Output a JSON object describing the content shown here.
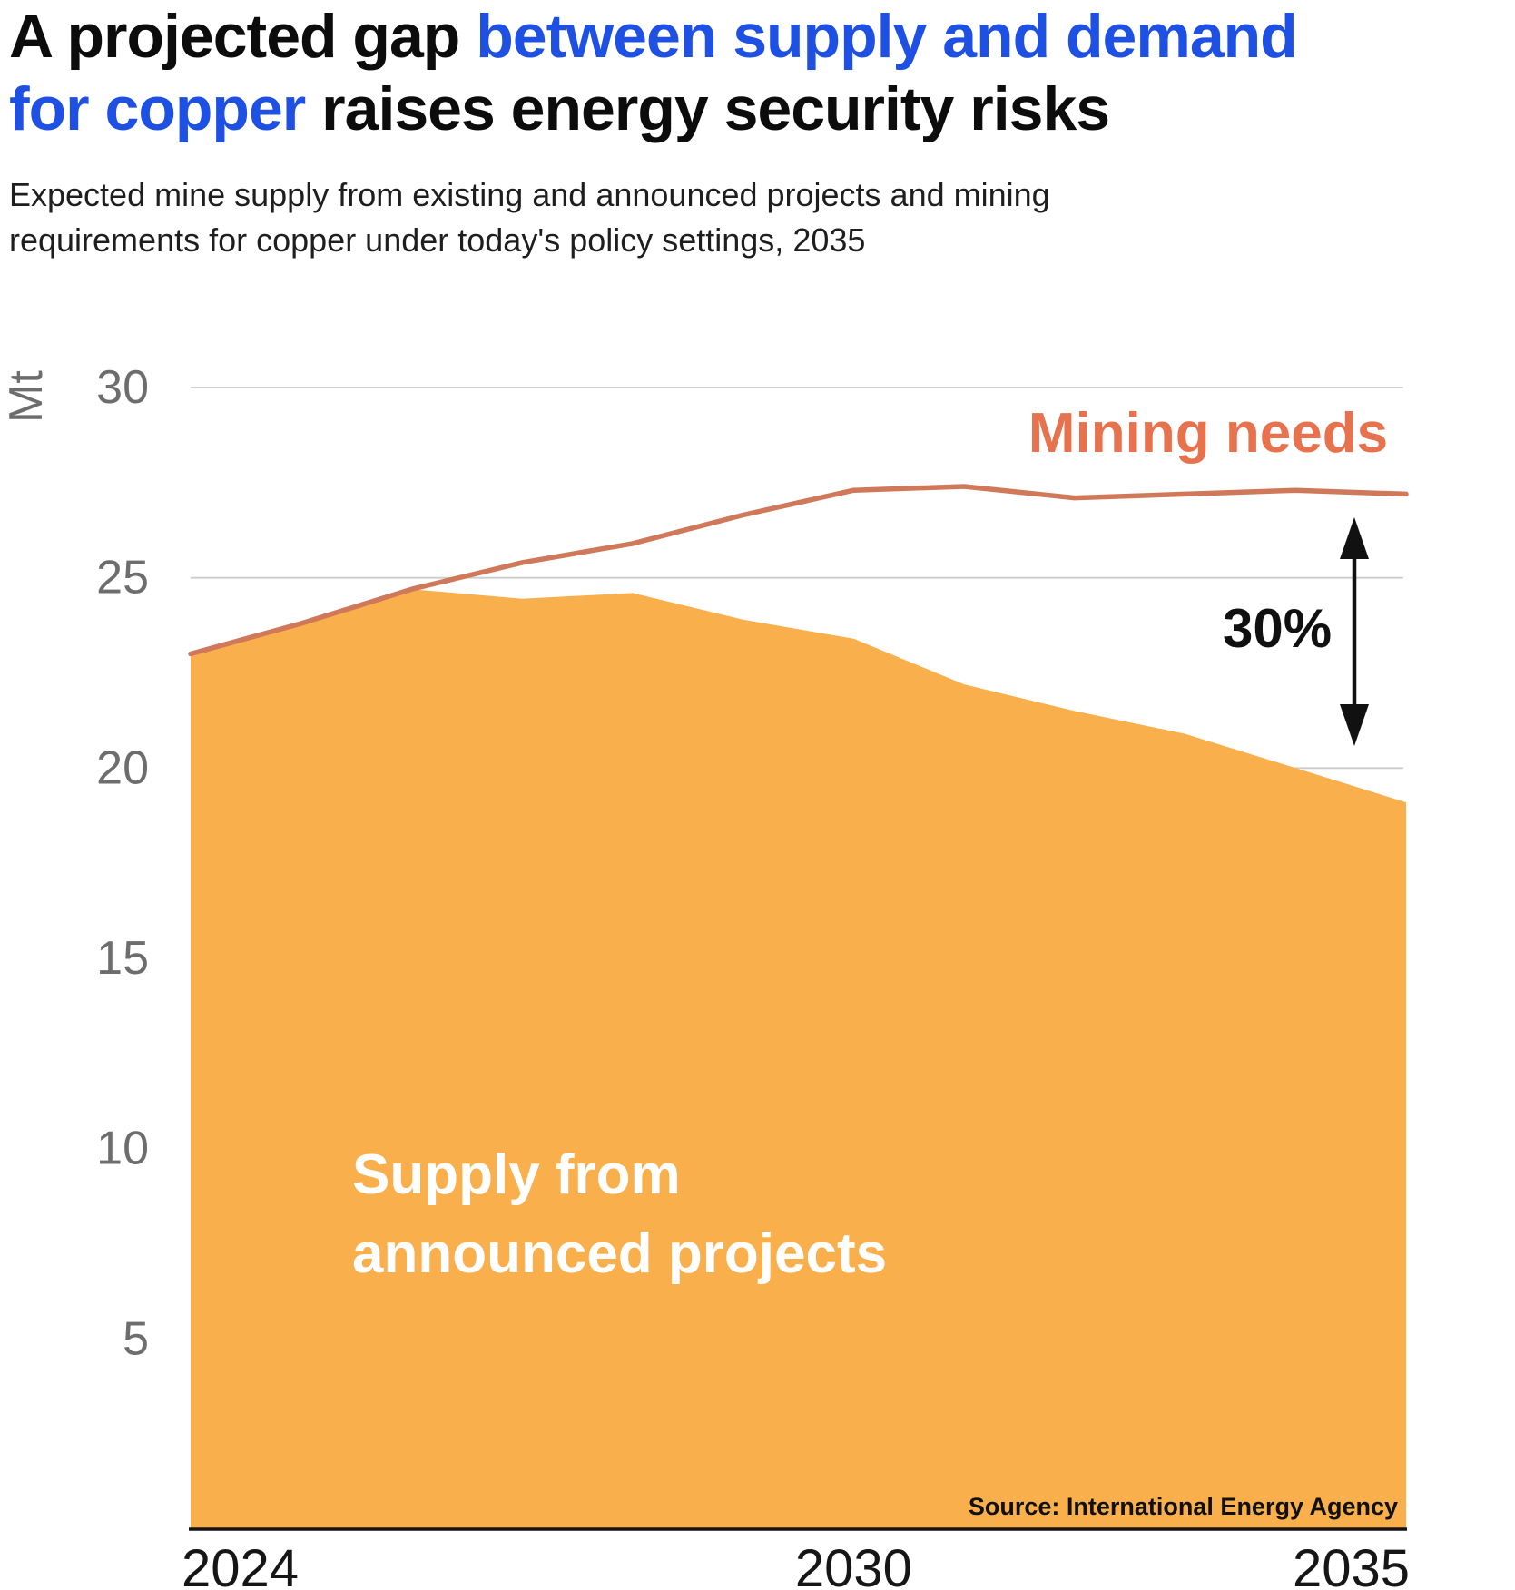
{
  "header": {
    "title": {
      "line1_black": "A projected gap",
      "line1_blue": "between supply and demand",
      "line2_blue": "for copper",
      "line2_black": "raises energy security risks"
    },
    "subtitle_lines": [
      "Expected mine supply from existing and announced projects and mining",
      "requirements for copper under today's policy settings, 2035"
    ]
  },
  "chart": {
    "unit_label": "Mt",
    "line_label": "Mining needs",
    "area_label_lines": [
      "Supply from",
      "announced projects"
    ],
    "gap_label": "30%",
    "source": "Source: International Energy Agency"
  },
  "colors": {
    "title_blue": "#1E50E4",
    "area_fill": "#F9B04C",
    "line_stroke": "#D0785A",
    "line_label": "#E7734E",
    "grid": "#CCCCCC",
    "axis": "#141414",
    "tick_gray": "#6D6D6D"
  },
  "chart_data": {
    "type": "area",
    "title": "A projected gap between supply and demand for copper raises energy security risks",
    "subtitle": "Expected mine supply from existing and announced projects and mining requirements for copper under today's policy settings, 2035",
    "ylabel": "Mt",
    "ylim": [
      0,
      30
    ],
    "y_ticks": [
      30,
      25,
      20,
      15,
      10,
      5
    ],
    "x_ticks": [
      2024,
      2030,
      2035
    ],
    "x": [
      2024,
      2025,
      2026,
      2027,
      2028,
      2029,
      2030,
      2031,
      2032,
      2033,
      2034,
      2035
    ],
    "series": [
      {
        "name": "Mining needs",
        "type": "line",
        "values": [
          23.0,
          23.8,
          24.7,
          25.4,
          25.9,
          26.65,
          27.3,
          27.4,
          27.1,
          27.2,
          27.3,
          27.2
        ]
      },
      {
        "name": "Supply from announced projects",
        "type": "area",
        "values": [
          23.0,
          23.8,
          24.7,
          24.45,
          24.6,
          23.9,
          23.4,
          22.2,
          21.5,
          20.9,
          20.0,
          19.1
        ]
      }
    ],
    "annotations": {
      "gap_label": "30%",
      "gap_arrow_year": 2034.5,
      "gap_between": [
        "Mining needs",
        "Supply from announced projects"
      ],
      "source": "Source: International Energy Agency"
    },
    "grid": "horizontal",
    "legend_position": "inline-labels"
  }
}
